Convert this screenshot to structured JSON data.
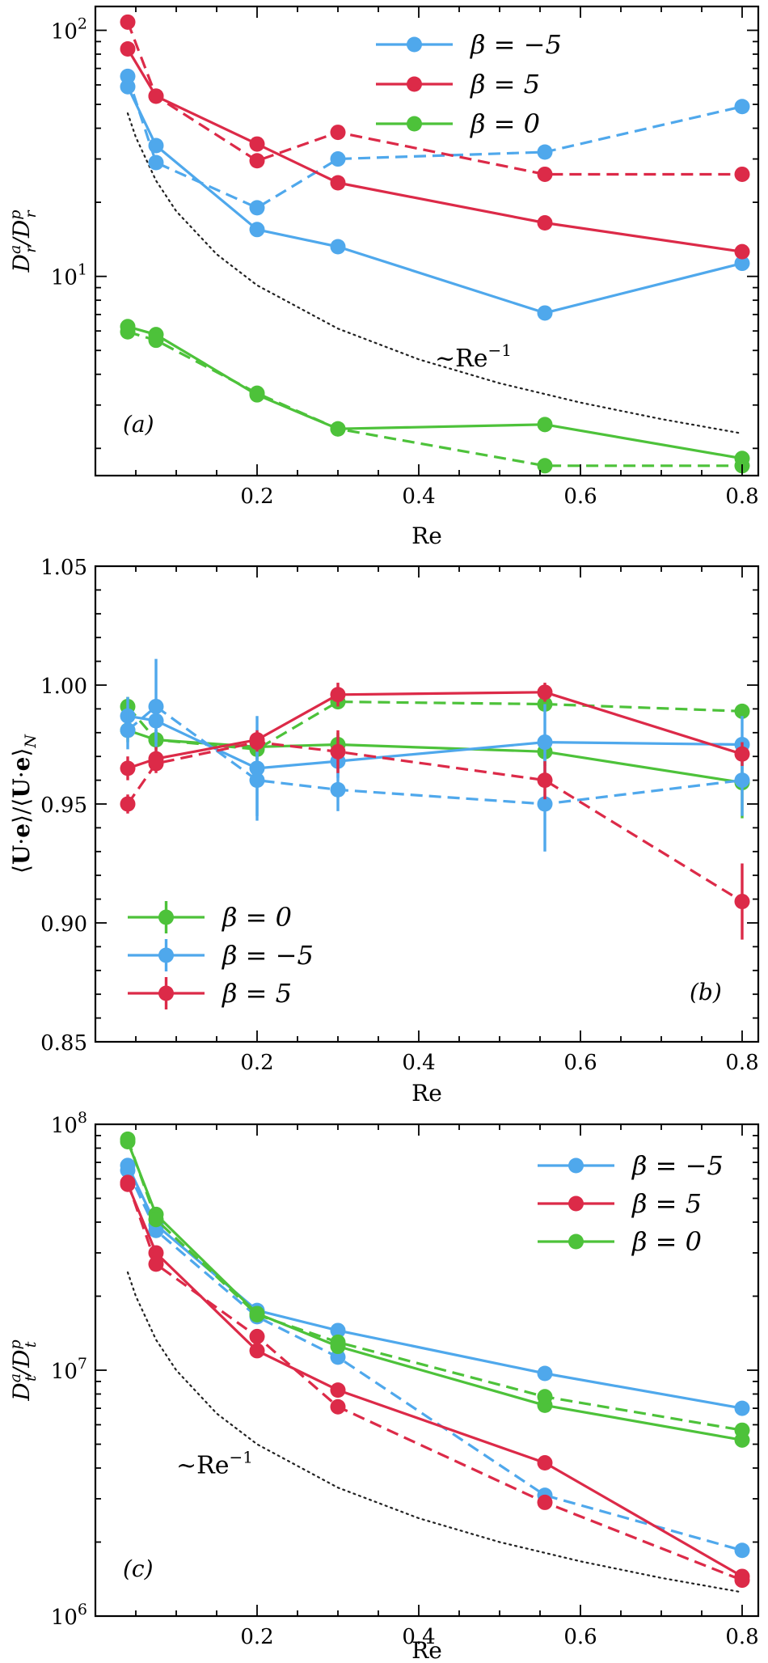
{
  "colors": {
    "beta_m5": "#4fa8ec",
    "beta_5": "#dc2a48",
    "beta_0": "#4dc23a",
    "reference": "#222222"
  },
  "chart_data": [
    {
      "type": "line",
      "panel_label": "(a)",
      "xlabel": "Re",
      "ylabel": "D_r^a / D_r^p",
      "ylabel_parts": {
        "main": "D",
        "sup1": "a",
        "sub1": "r",
        "slash": "/D",
        "sup2": "p",
        "sub2": "r"
      },
      "yscale": "log",
      "xlim": [
        0.0,
        0.82
      ],
      "ylim": [
        1.55,
        125
      ],
      "x_ticks": [
        0.2,
        0.4,
        0.6,
        0.8
      ],
      "x_tick_labels": [
        "0.2",
        "0.4",
        "0.6",
        "0.8"
      ],
      "y_ticks": [
        10,
        100
      ],
      "y_tick_labels": [
        {
          "base": "10",
          "exp": "1"
        },
        {
          "base": "10",
          "exp": "2"
        }
      ],
      "legend_position": "top-right",
      "annotation": {
        "text_prefix": "~Re",
        "text_exp": "−1",
        "x": 0.42,
        "y": 4.3
      },
      "reference_curve": {
        "style": "dotted",
        "values": [
          [
            0.04,
            46
          ],
          [
            0.05,
            36.8
          ],
          [
            0.075,
            24.5
          ],
          [
            0.1,
            18.4
          ],
          [
            0.15,
            12.3
          ],
          [
            0.2,
            9.2
          ],
          [
            0.3,
            6.13
          ],
          [
            0.4,
            4.6
          ],
          [
            0.5,
            3.68
          ],
          [
            0.6,
            3.07
          ],
          [
            0.7,
            2.63
          ],
          [
            0.8,
            2.3
          ]
        ]
      },
      "x": [
        0.04,
        0.075,
        0.2,
        0.3,
        0.556,
        0.8
      ],
      "series": [
        {
          "name": "β = −5",
          "legend_label": "β = −5",
          "color_key": "beta_m5",
          "style": "solid",
          "values": [
            59,
            34,
            15.5,
            13.2,
            7.1,
            11.3
          ]
        },
        {
          "name": "β = −5 (dashed)",
          "color_key": "beta_m5",
          "style": "dashed",
          "values": [
            65,
            29,
            19,
            30,
            32,
            49
          ]
        },
        {
          "name": "β = 5",
          "legend_label": "β = 5",
          "color_key": "beta_5",
          "style": "solid",
          "values": [
            84,
            54,
            34.5,
            24,
            16.5,
            12.6
          ]
        },
        {
          "name": "β = 5 (dashed)",
          "color_key": "beta_5",
          "style": "dashed",
          "values": [
            108,
            54,
            29.5,
            38.5,
            26,
            26
          ]
        },
        {
          "name": "β = 0",
          "legend_label": "β = 0",
          "color_key": "beta_0",
          "style": "solid",
          "values": [
            6.25,
            5.8,
            3.3,
            2.4,
            2.5,
            1.82
          ]
        },
        {
          "name": "β = 0 (dashed)",
          "color_key": "beta_0",
          "style": "dashed",
          "values": [
            5.95,
            5.5,
            3.35,
            2.4,
            1.7,
            1.7
          ]
        }
      ]
    },
    {
      "type": "line",
      "panel_label": "(b)",
      "xlabel": "Re",
      "ylabel": "⟨U·e⟩/⟨U·e⟩_N",
      "ylabel_parts": {
        "open": "⟨",
        "bold1": "U",
        "dot": "·",
        "bold2": "e",
        "mid": "⟩/⟨",
        "bold3": "U",
        "bold4": "e",
        "close": "⟩",
        "sub": "N"
      },
      "yscale": "linear",
      "xlim": [
        0.0,
        0.82
      ],
      "ylim": [
        0.85,
        1.05
      ],
      "x_ticks": [
        0.2,
        0.4,
        0.6,
        0.8
      ],
      "x_tick_labels": [
        "0.2",
        "0.4",
        "0.6",
        "0.8"
      ],
      "y_ticks": [
        0.85,
        0.9,
        0.95,
        1.0,
        1.05
      ],
      "y_tick_labels": [
        "0.85",
        "0.90",
        "0.95",
        "1.00",
        "1.05"
      ],
      "legend_position": "bottom-left",
      "x": [
        0.04,
        0.075,
        0.2,
        0.3,
        0.556,
        0.8
      ],
      "series": [
        {
          "name": "β = 0",
          "legend_label": "β = 0",
          "color_key": "beta_0",
          "style": "solid",
          "values": [
            0.981,
            0.977,
            0.974,
            0.975,
            0.972,
            0.959
          ],
          "errors": [
            0.005,
            0.004,
            0.006,
            0.005,
            0.006,
            0.015
          ]
        },
        {
          "name": "β = 0 (dashed)",
          "color_key": "beta_0",
          "style": "dashed",
          "values": [
            0.991,
            0.977,
            0.973,
            0.993,
            0.992,
            0.989
          ],
          "errors": [
            0.004,
            0.004,
            0.004,
            0.003,
            0.003,
            0.003
          ]
        },
        {
          "name": "β = −5",
          "legend_label": "β = −5",
          "color_key": "beta_m5",
          "style": "solid",
          "values": [
            0.987,
            0.985,
            0.965,
            0.968,
            0.976,
            0.975
          ],
          "errors": [
            0.008,
            0.009,
            0.022,
            0.007,
            0.016,
            0.012
          ]
        },
        {
          "name": "β = −5 (dashed)",
          "color_key": "beta_m5",
          "style": "dashed",
          "values": [
            0.981,
            0.991,
            0.96,
            0.956,
            0.95,
            0.96
          ],
          "errors": [
            0.008,
            0.02,
            0.015,
            0.009,
            0.02,
            0.015
          ]
        },
        {
          "name": "β = 5",
          "legend_label": "β = 5",
          "color_key": "beta_5",
          "style": "solid",
          "values": [
            0.965,
            0.969,
            0.977,
            0.996,
            0.997,
            0.971
          ],
          "errors": [
            0.005,
            0.005,
            0.004,
            0.005,
            0.004,
            0.005
          ]
        },
        {
          "name": "β = 5 (dashed)",
          "color_key": "beta_5",
          "style": "dashed",
          "values": [
            0.95,
            0.967,
            0.976,
            0.972,
            0.96,
            0.909
          ],
          "errors": [
            0.004,
            0.004,
            0.004,
            0.009,
            0.008,
            0.016
          ]
        }
      ]
    },
    {
      "type": "line",
      "panel_label": "(c)",
      "xlabel": "Re",
      "ylabel": "D_t^a / D_t^p",
      "ylabel_parts": {
        "main": "D",
        "sup1": "a",
        "sub1": "t",
        "slash": "/D",
        "sup2": "p",
        "sub2": "t"
      },
      "yscale": "log",
      "xlim": [
        0.0,
        0.82
      ],
      "ylim": [
        1000000,
        100000000
      ],
      "x_ticks": [
        0.2,
        0.4,
        0.6,
        0.8
      ],
      "x_tick_labels": [
        "0.2",
        "0.4",
        "0.6",
        "0.8"
      ],
      "y_ticks": [
        1000000,
        10000000,
        100000000
      ],
      "y_tick_labels": [
        {
          "base": "10",
          "exp": "6"
        },
        {
          "base": "10",
          "exp": "7"
        },
        {
          "base": "10",
          "exp": "8"
        }
      ],
      "legend_position": "top-right",
      "annotation": {
        "text_prefix": "~Re",
        "text_exp": "−1",
        "x": 0.1,
        "y": 3800000
      },
      "reference_curve": {
        "style": "dotted",
        "values": [
          [
            0.04,
            25000000
          ],
          [
            0.05,
            20000000
          ],
          [
            0.075,
            13300000
          ],
          [
            0.1,
            10000000
          ],
          [
            0.15,
            6670000
          ],
          [
            0.2,
            5000000
          ],
          [
            0.3,
            3330000
          ],
          [
            0.4,
            2500000
          ],
          [
            0.5,
            2000000
          ],
          [
            0.6,
            1670000
          ],
          [
            0.7,
            1430000
          ],
          [
            0.8,
            1250000
          ]
        ]
      },
      "x": [
        0.04,
        0.075,
        0.2,
        0.3,
        0.556,
        0.8
      ],
      "series": [
        {
          "name": "β = −5",
          "legend_label": "β = −5",
          "color_key": "beta_m5",
          "style": "solid",
          "values": [
            68000000,
            39000000,
            17500000,
            14500000,
            9700000,
            7000000
          ]
        },
        {
          "name": "β = −5 (dashed)",
          "color_key": "beta_m5",
          "style": "dashed",
          "values": [
            65000000,
            37000000,
            16500000,
            11300000,
            3100000,
            1850000
          ]
        },
        {
          "name": "β = 5",
          "legend_label": "β = 5",
          "color_key": "beta_5",
          "style": "solid",
          "values": [
            57000000,
            30000000,
            12000000,
            8300000,
            4200000,
            1450000
          ]
        },
        {
          "name": "β = 5 (dashed)",
          "color_key": "beta_5",
          "style": "dashed",
          "values": [
            58000000,
            27000000,
            13700000,
            7100000,
            2900000,
            1400000
          ]
        },
        {
          "name": "β = 0",
          "legend_label": "β = 0",
          "color_key": "beta_0",
          "style": "solid",
          "values": [
            85000000,
            43000000,
            17000000,
            12500000,
            7200000,
            5200000
          ]
        },
        {
          "name": "β = 0 (dashed)",
          "color_key": "beta_0",
          "style": "dashed",
          "values": [
            87000000,
            41000000,
            16800000,
            13000000,
            7800000,
            5700000
          ]
        }
      ]
    }
  ]
}
